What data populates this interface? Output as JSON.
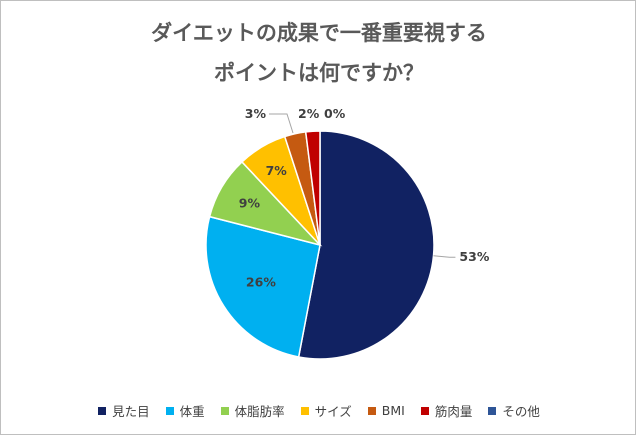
{
  "chart_data": {
    "type": "pie",
    "title_lines": [
      "ダイエットの成果で一番重要視する",
      "ポイントは何ですか？"
    ],
    "slices": [
      {
        "name": "見た目",
        "value": 53,
        "label": "53%",
        "color": "#112262"
      },
      {
        "name": "体重",
        "value": 26,
        "label": "26%",
        "color": "#00b0f0"
      },
      {
        "name": "体脂肪率",
        "value": 9,
        "label": "9%",
        "color": "#92d050"
      },
      {
        "name": "サイズ",
        "value": 7,
        "label": "7%",
        "color": "#ffc000"
      },
      {
        "name": "BMI",
        "value": 3,
        "label": "3%",
        "color": "#c55a11"
      },
      {
        "name": "筋肉量",
        "value": 2,
        "label": "2%",
        "color": "#c00000"
      },
      {
        "name": "その他",
        "value": 0,
        "label": "0%",
        "color": "#2e5597"
      }
    ],
    "legend_position": "bottom"
  }
}
